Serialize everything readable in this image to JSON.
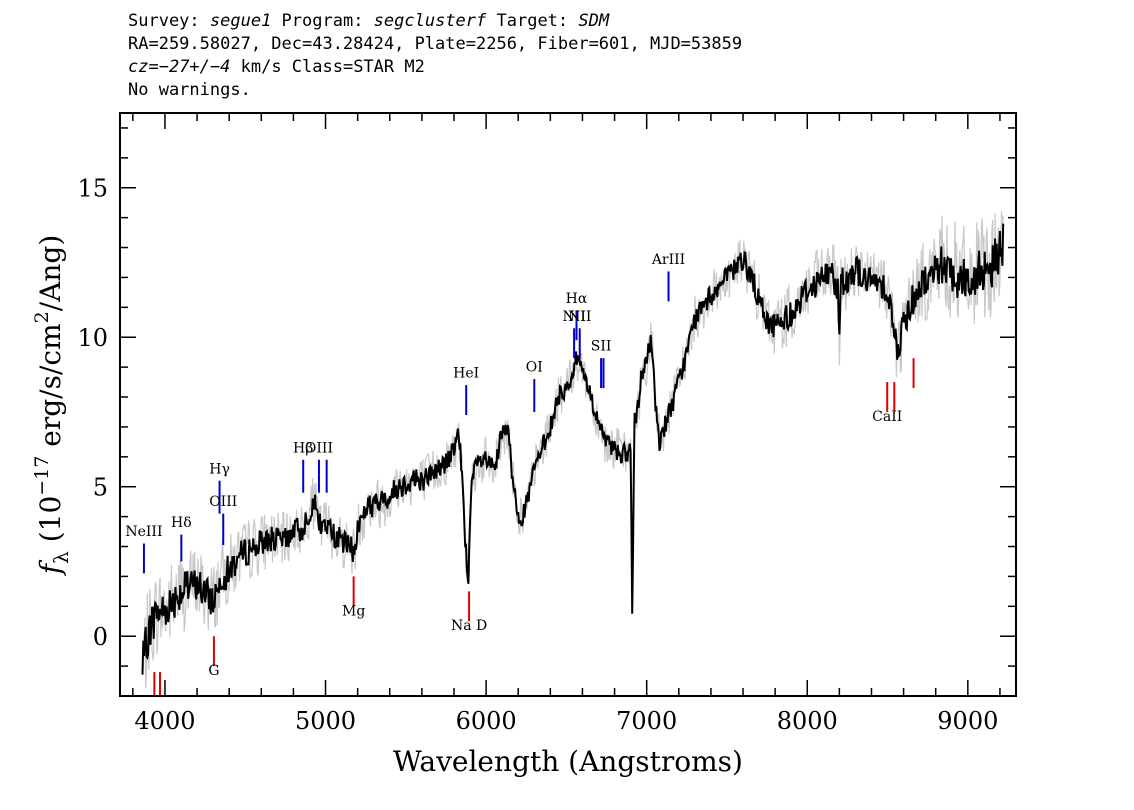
{
  "header": {
    "line1": {
      "survey_prefix": "Survey: ",
      "survey": "segue1",
      "program_prefix": " Program: ",
      "program": "segclusterf",
      "target_prefix": " Target: ",
      "target": "SDM"
    },
    "line2": "RA=259.58027, Dec=43.28424, Plate=2256, Fiber=601, MJD=53859",
    "line3": {
      "cz_prefix": "cz=",
      "cz": "−27+/−4",
      "cz_suffix": " km/s Class=STAR M2"
    },
    "line4": "No warnings."
  },
  "chart_data": {
    "type": "line",
    "xlabel": "Wavelength (Angstroms)",
    "ylabel": "f_λ (10^-17 erg/s/cm^2/Ang)",
    "xlim": [
      3720,
      9300
    ],
    "ylim": [
      -2,
      17.5
    ],
    "x_ticks": [
      4000,
      5000,
      6000,
      7000,
      8000,
      9000
    ],
    "y_ticks": [
      0,
      5,
      10,
      15
    ],
    "x_range_data": [
      3860,
      9220
    ],
    "colors": {
      "spectrum": "#000000",
      "error": "#c8c8c8",
      "emission": "#0000cc",
      "absorption": "#dd0000"
    },
    "series": [
      {
        "role": "flux",
        "x": [
          3860,
          3900,
          3950,
          4000,
          4050,
          4100,
          4150,
          4200,
          4250,
          4300,
          4350,
          4400,
          4450,
          4500,
          4550,
          4600,
          4650,
          4700,
          4750,
          4800,
          4850,
          4900,
          4930,
          4970,
          5000,
          5050,
          5100,
          5150,
          5180,
          5200,
          5250,
          5300,
          5350,
          5400,
          5450,
          5500,
          5550,
          5600,
          5650,
          5700,
          5750,
          5800,
          5830,
          5850,
          5870,
          5890,
          5910,
          5950,
          6000,
          6050,
          6100,
          6140,
          6160,
          6200,
          6230,
          6260,
          6300,
          6350,
          6400,
          6450,
          6500,
          6540,
          6560,
          6600,
          6650,
          6700,
          6750,
          6800,
          6850,
          6880,
          6900,
          6910,
          6925,
          6940,
          6970,
          7000,
          7030,
          7050,
          7080,
          7120,
          7150,
          7200,
          7250,
          7300,
          7350,
          7400,
          7450,
          7500,
          7550,
          7590,
          7620,
          7650,
          7700,
          7750,
          7800,
          7850,
          7900,
          7950,
          8000,
          8050,
          8100,
          8150,
          8190,
          8200,
          8210,
          8250,
          8300,
          8350,
          8400,
          8450,
          8500,
          8540,
          8560,
          8600,
          8650,
          8700,
          8750,
          8800,
          8850,
          8900,
          8950,
          9000,
          9050,
          9100,
          9150,
          9200,
          9220
        ],
        "y": [
          -1.0,
          0.2,
          0.8,
          0.9,
          1.2,
          1.5,
          1.6,
          1.8,
          1.4,
          1.2,
          2.0,
          2.2,
          2.6,
          2.8,
          3.0,
          3.1,
          3.3,
          3.2,
          3.2,
          3.6,
          3.5,
          4.2,
          4.5,
          3.6,
          3.8,
          3.4,
          3.2,
          3.0,
          2.8,
          3.6,
          4.3,
          4.4,
          4.5,
          4.7,
          5.0,
          5.1,
          5.3,
          5.2,
          5.4,
          5.6,
          5.8,
          6.2,
          6.8,
          5.5,
          3.2,
          2.0,
          5.2,
          5.8,
          5.9,
          5.5,
          6.8,
          6.8,
          5.5,
          4.1,
          4.0,
          4.6,
          5.6,
          6.3,
          7.0,
          8.0,
          8.3,
          8.8,
          9.3,
          9.0,
          8.0,
          7.2,
          6.4,
          6.3,
          6.1,
          6.0,
          6.4,
          0.8,
          7.2,
          7.3,
          8.8,
          9.2,
          10.0,
          8.0,
          6.5,
          7.2,
          7.6,
          8.5,
          9.5,
          10.6,
          11.0,
          11.4,
          11.7,
          12.0,
          12.3,
          12.6,
          12.4,
          12.1,
          11.2,
          10.5,
          10.4,
          10.6,
          10.8,
          11.2,
          11.6,
          11.8,
          12.0,
          12.2,
          11.6,
          10.1,
          11.8,
          12.0,
          12.3,
          12.0,
          11.8,
          11.9,
          11.6,
          10.4,
          9.3,
          10.5,
          11.2,
          11.7,
          12.0,
          12.3,
          12.5,
          12.2,
          12.0,
          11.9,
          12.1,
          12.3,
          12.4,
          12.8,
          13.2
        ]
      }
    ],
    "error_band": {
      "x": [
        3860,
        3950,
        4100,
        4300,
        4500,
        4800,
        5100,
        5400,
        5700,
        6000,
        6300,
        6600,
        6900,
        7200,
        7500,
        7800,
        8100,
        8400,
        8700,
        8900,
        9220
      ],
      "width": [
        1.6,
        1.5,
        1.4,
        1.3,
        1.1,
        0.9,
        0.9,
        0.9,
        0.8,
        0.8,
        0.7,
        0.7,
        0.8,
        0.8,
        0.8,
        1.0,
        1.1,
        1.1,
        1.3,
        1.8,
        1.7
      ]
    },
    "emission_lines": [
      {
        "label": "NeIII",
        "wavelength": 3869,
        "top": 3.1,
        "bottom": 2.1,
        "label_y": 3.35
      },
      {
        "label": "Hδ",
        "wavelength": 4102,
        "top": 3.4,
        "bottom": 2.5,
        "label_y": 3.65
      },
      {
        "label": "Hγ",
        "wavelength": 4340,
        "top": 5.2,
        "bottom": 4.1,
        "label_y": 5.45
      },
      {
        "label": "OIII",
        "wavelength": 4363,
        "top": 4.1,
        "bottom": 3.05,
        "label_y": 4.35
      },
      {
        "label": "Hβ",
        "wavelength": 4861,
        "top": 5.9,
        "bottom": 4.8,
        "label_y": 6.15
      },
      {
        "label": "OIII",
        "wavelength": 4959,
        "top": 5.9,
        "bottom": 4.8,
        "label_y": 6.15
      },
      {
        "label": "",
        "wavelength": 5007,
        "top": 5.9,
        "bottom": 4.8,
        "label_y": 6.15
      },
      {
        "label": "HeI",
        "wavelength": 5876,
        "top": 8.4,
        "bottom": 7.4,
        "label_y": 8.65
      },
      {
        "label": "OI",
        "wavelength": 6300,
        "top": 8.6,
        "bottom": 7.5,
        "label_y": 8.85
      },
      {
        "label": "NII",
        "wavelength": 6548,
        "top": 10.3,
        "bottom": 9.3,
        "label_y": 10.55
      },
      {
        "label": "Hα",
        "wavelength": 6563,
        "top": 10.9,
        "bottom": 9.9,
        "label_y": 11.15
      },
      {
        "label": "NII",
        "wavelength": 6583,
        "top": 10.3,
        "bottom": 9.3,
        "label_y": 10.55
      },
      {
        "label": "SII",
        "wavelength": 6716,
        "top": 9.3,
        "bottom": 8.3,
        "label_y": 9.55
      },
      {
        "label": "",
        "wavelength": 6731,
        "top": 9.3,
        "bottom": 8.3,
        "label_y": 9.55
      },
      {
        "label": "ArIII",
        "wavelength": 7136,
        "top": 12.2,
        "bottom": 11.2,
        "label_y": 12.45
      }
    ],
    "absorption_lines": [
      {
        "label": "",
        "wavelength": 3934,
        "top": -1.2,
        "bottom": -2.2,
        "label_y": -2.4
      },
      {
        "label": "",
        "wavelength": 3969,
        "top": -1.2,
        "bottom": -2.2,
        "label_y": -2.4
      },
      {
        "label": "G",
        "wavelength": 4305,
        "top": 0.0,
        "bottom": -1.0,
        "label_y": -1.3
      },
      {
        "label": "Mg",
        "wavelength": 5175,
        "top": 2.0,
        "bottom": 1.0,
        "label_y": 0.7
      },
      {
        "label": "Na D",
        "wavelength": 5894,
        "top": 1.5,
        "bottom": 0.5,
        "label_y": 0.2
      },
      {
        "label": "CaII",
        "wavelength": 8498,
        "top": 8.5,
        "bottom": 7.5,
        "label_y": 7.2
      },
      {
        "label": "",
        "wavelength": 8542,
        "top": 8.5,
        "bottom": 7.5,
        "label_y": 7.2
      },
      {
        "label": "",
        "wavelength": 8662,
        "top": 9.3,
        "bottom": 8.3,
        "label_y": 8.0
      }
    ]
  }
}
